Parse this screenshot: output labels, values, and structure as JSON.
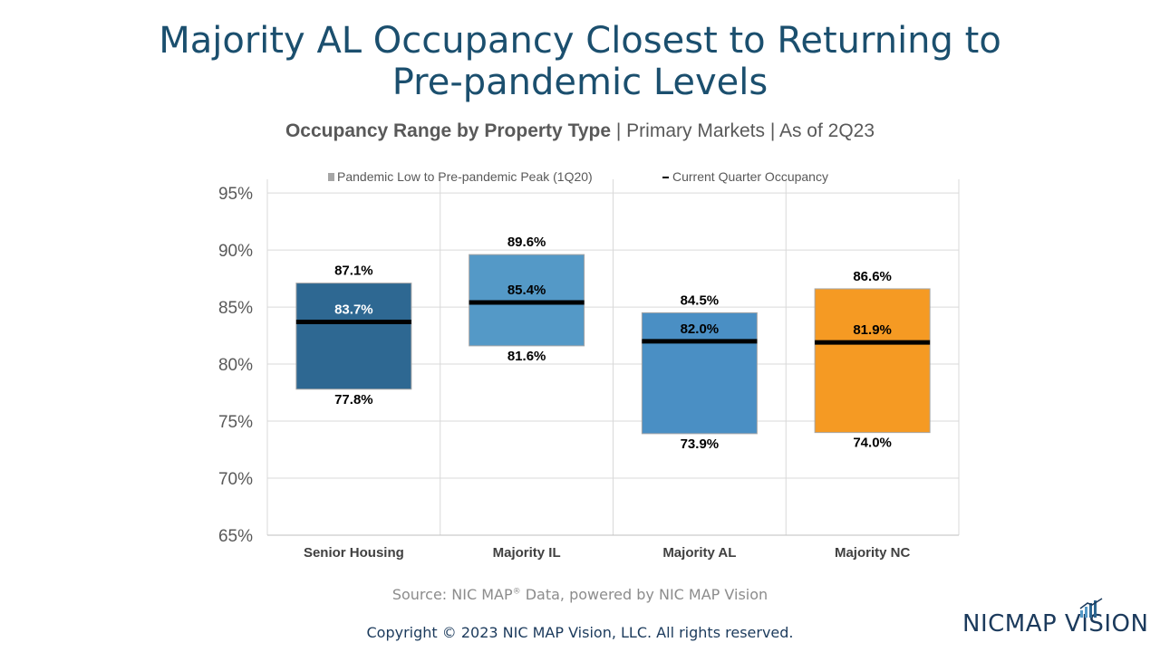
{
  "title_line1": "Majority AL Occupancy Closest to Returning to",
  "title_line2": "Pre-pandemic Levels",
  "subtitle_bold": "Occupancy Range by Property Type",
  "subtitle_rest": " | Primary Markets | As of 2Q23",
  "source": {
    "prefix": "Source: NIC MAP",
    "mark": "®",
    "suffix": " Data, powered by NIC MAP Vision"
  },
  "copyright": "Copyright © 2023 NIC MAP Vision, LLC. All rights reserved.",
  "logo_text": "NICMAP VISION",
  "chart_data": {
    "type": "bar",
    "subtype": "floating-range-with-marker",
    "categories": [
      "Senior Housing",
      "Majority IL",
      "Majority AL",
      "Majority NC"
    ],
    "series": [
      {
        "name": "Pandemic Low to Pre-pandemic Peak (1Q20)",
        "low": [
          77.8,
          81.6,
          73.9,
          74.0
        ],
        "high": [
          87.1,
          89.6,
          84.5,
          86.6
        ]
      },
      {
        "name": "Current Quarter Occupancy",
        "values": [
          83.7,
          85.4,
          82.0,
          81.9
        ]
      }
    ],
    "ylim": [
      65,
      95
    ],
    "yticks": [
      "95%",
      "90%",
      "85%",
      "80%",
      "75%",
      "70%",
      "65%"
    ],
    "high_labels": [
      "87.1%",
      "89.6%",
      "84.5%",
      "86.6%"
    ],
    "low_labels": [
      "77.8%",
      "81.6%",
      "73.9%",
      "74.0%"
    ],
    "current_labels": [
      "83.7%",
      "85.4%",
      "82.0%",
      "81.9%"
    ],
    "bar_colors": [
      "#2e6892",
      "#5499c7",
      "#4a8fc4",
      "#f59a23"
    ],
    "current_label_colors": [
      "#ffffff",
      "#000000",
      "#000000",
      "#000000"
    ],
    "legend_placement": "top",
    "grid": true
  }
}
